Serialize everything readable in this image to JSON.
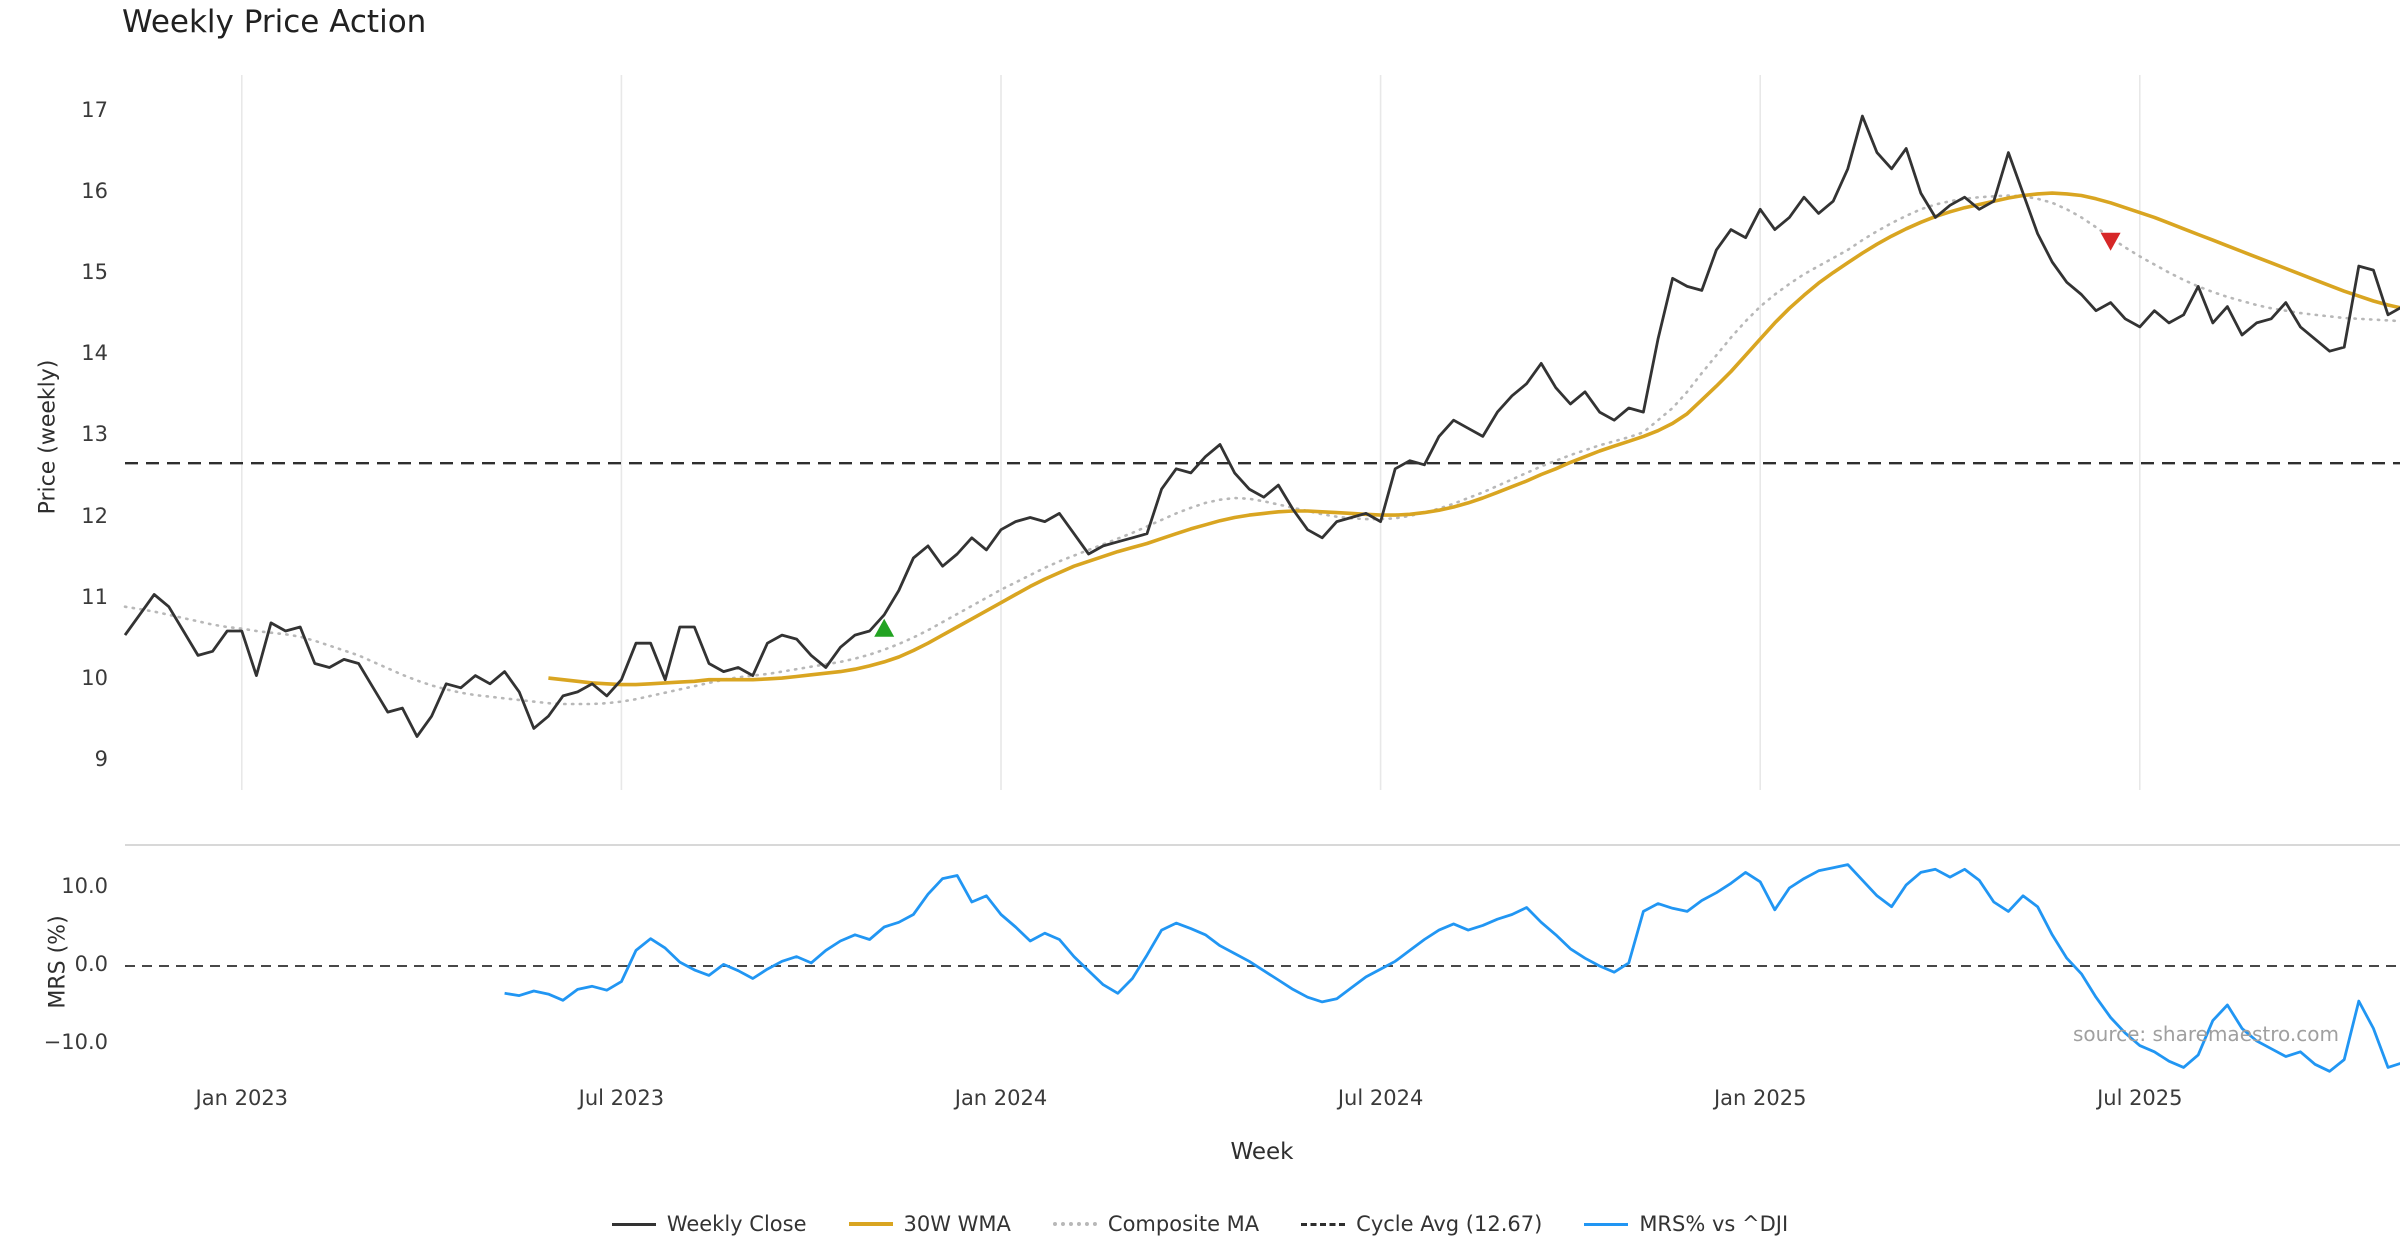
{
  "annotations": {
    "source_text": "source: sharemaestro.com"
  },
  "legend": {
    "items": [
      {
        "label": "Weekly Close",
        "key": "weekly_close",
        "line_style": "solid"
      },
      {
        "label": "30W WMA",
        "key": "wma",
        "line_style": "solid"
      },
      {
        "label": "Composite MA",
        "key": "composite",
        "line_style": "dotted"
      },
      {
        "label": "Cycle Avg (12.67)",
        "key": "cycle_avg",
        "line_style": "dashed"
      },
      {
        "label": "MRS% vs ^DJI",
        "key": "mrs",
        "line_style": "solid"
      }
    ]
  },
  "chart_data": {
    "type": "line",
    "title": "Weekly Price Action",
    "xlabel": "Week",
    "grid": "vertical-light",
    "legend_position": "bottom-center",
    "colors": {
      "weekly_close": "#333333",
      "wma": "#d9a521",
      "composite": "#b8b8b8",
      "cycle_avg": "#2e2e2e",
      "mrs": "#2196f3",
      "buy": "#22a322",
      "sell": "#d62728",
      "grid": "#e8e8e8",
      "spine": "#cccccc"
    },
    "x_axis": {
      "unit": "weeks",
      "xlim_weeks": [
        0,
        156
      ],
      "ticks": [
        {
          "week": 8,
          "label": "Jan 2023"
        },
        {
          "week": 34,
          "label": "Jul 2023"
        },
        {
          "week": 60,
          "label": "Jan 2024"
        },
        {
          "week": 86,
          "label": "Jul 2024"
        },
        {
          "week": 112,
          "label": "Jan 2025"
        },
        {
          "week": 138,
          "label": "Jul 2025"
        }
      ]
    },
    "panels": [
      {
        "name": "price",
        "ylabel": "Price (weekly)",
        "ylim": [
          8.7,
          17.35
        ],
        "yticks": [
          9,
          10,
          11,
          12,
          13,
          14,
          15,
          16,
          17
        ],
        "reference_line": {
          "label": "Cycle Avg",
          "value": 12.67,
          "style": "dashed"
        },
        "series": [
          {
            "key": "weekly_close",
            "name": "Weekly Close",
            "start_week": 0,
            "values": [
              10.55,
              10.8,
              11.05,
              10.9,
              10.6,
              10.3,
              10.35,
              10.6,
              10.6,
              10.05,
              10.7,
              10.6,
              10.65,
              10.2,
              10.15,
              10.25,
              10.2,
              9.9,
              9.6,
              9.65,
              9.3,
              9.55,
              9.95,
              9.9,
              10.05,
              9.95,
              10.1,
              9.85,
              9.4,
              9.55,
              9.8,
              9.85,
              9.95,
              9.8,
              10.0,
              10.45,
              10.45,
              10.0,
              10.65,
              10.65,
              10.2,
              10.1,
              10.15,
              10.05,
              10.45,
              10.55,
              10.5,
              10.3,
              10.15,
              10.4,
              10.55,
              10.6,
              10.8,
              11.1,
              11.5,
              11.65,
              11.4,
              11.55,
              11.75,
              11.6,
              11.85,
              11.95,
              12.0,
              11.95,
              12.05,
              11.8,
              11.55,
              11.65,
              11.7,
              11.75,
              11.8,
              12.35,
              12.6,
              12.55,
              12.75,
              12.9,
              12.55,
              12.35,
              12.25,
              12.4,
              12.1,
              11.85,
              11.75,
              11.95,
              12.0,
              12.05,
              11.95,
              12.6,
              12.7,
              12.65,
              13.0,
              13.2,
              13.1,
              13.0,
              13.3,
              13.5,
              13.65,
              13.9,
              13.6,
              13.4,
              13.55,
              13.3,
              13.2,
              13.35,
              13.3,
              14.2,
              14.95,
              14.85,
              14.8,
              15.3,
              15.55,
              15.45,
              15.8,
              15.55,
              15.7,
              15.95,
              15.75,
              15.9,
              16.3,
              16.95,
              16.5,
              16.3,
              16.55,
              16.0,
              15.7,
              15.85,
              15.95,
              15.8,
              15.9,
              16.5,
              16.0,
              15.5,
              15.15,
              14.9,
              14.75,
              14.55,
              14.65,
              14.45,
              14.35,
              14.55,
              14.4,
              14.5,
              14.85,
              14.4,
              14.6,
              14.25,
              14.4,
              14.45,
              14.65,
              14.35,
              14.2,
              14.05,
              14.1,
              15.1,
              15.05,
              14.5,
              14.6
            ]
          },
          {
            "key": "wma",
            "name": "30W WMA",
            "start_week": 29,
            "values": [
              10.02,
              10.0,
              9.98,
              9.96,
              9.95,
              9.94,
              9.94,
              9.95,
              9.96,
              9.97,
              9.98,
              10.0,
              10.0,
              10.0,
              10.0,
              10.01,
              10.02,
              10.04,
              10.06,
              10.08,
              10.1,
              10.13,
              10.17,
              10.22,
              10.28,
              10.36,
              10.45,
              10.55,
              10.65,
              10.75,
              10.85,
              10.95,
              11.05,
              11.15,
              11.24,
              11.32,
              11.4,
              11.46,
              11.52,
              11.58,
              11.63,
              11.68,
              11.74,
              11.8,
              11.86,
              11.91,
              11.96,
              12.0,
              12.03,
              12.05,
              12.07,
              12.08,
              12.08,
              12.07,
              12.06,
              12.05,
              12.04,
              12.03,
              12.03,
              12.04,
              12.06,
              12.09,
              12.13,
              12.18,
              12.24,
              12.31,
              12.38,
              12.45,
              12.53,
              12.6,
              12.68,
              12.75,
              12.82,
              12.88,
              12.94,
              13.0,
              13.07,
              13.16,
              13.28,
              13.45,
              13.62,
              13.8,
              14.0,
              14.2,
              14.4,
              14.58,
              14.74,
              14.89,
              15.02,
              15.14,
              15.26,
              15.37,
              15.47,
              15.56,
              15.64,
              15.71,
              15.77,
              15.82,
              15.86,
              15.9,
              15.94,
              15.97,
              15.99,
              16.0,
              15.99,
              15.97,
              15.93,
              15.88,
              15.82,
              15.76,
              15.7,
              15.63,
              15.56,
              15.49,
              15.42,
              15.35,
              15.28,
              15.21,
              15.14,
              15.07,
              15.0,
              14.93,
              14.86,
              14.79,
              14.73,
              14.67,
              14.62,
              14.58
            ]
          },
          {
            "key": "composite",
            "name": "Composite MA",
            "start_week": 0,
            "values": [
              10.9,
              10.87,
              10.84,
              10.8,
              10.76,
              10.72,
              10.68,
              10.65,
              10.63,
              10.6,
              10.58,
              10.56,
              10.53,
              10.48,
              10.42,
              10.36,
              10.3,
              10.22,
              10.14,
              10.06,
              9.99,
              9.93,
              9.88,
              9.84,
              9.81,
              9.79,
              9.77,
              9.75,
              9.73,
              9.71,
              9.7,
              9.7,
              9.7,
              9.71,
              9.73,
              9.76,
              9.8,
              9.84,
              9.88,
              9.92,
              9.96,
              10.0,
              10.03,
              10.05,
              10.07,
              10.1,
              10.13,
              10.16,
              10.19,
              10.22,
              10.26,
              10.31,
              10.37,
              10.44,
              10.52,
              10.61,
              10.71,
              10.81,
              10.91,
              11.01,
              11.11,
              11.2,
              11.29,
              11.38,
              11.46,
              11.53,
              11.6,
              11.67,
              11.74,
              11.81,
              11.89,
              11.97,
              12.05,
              12.12,
              12.18,
              12.22,
              12.24,
              12.23,
              12.2,
              12.16,
              12.12,
              12.08,
              12.04,
              12.01,
              11.99,
              11.98,
              11.98,
              11.99,
              12.02,
              12.06,
              12.11,
              12.17,
              12.24,
              12.31,
              12.39,
              12.47,
              12.55,
              12.63,
              12.7,
              12.77,
              12.83,
              12.89,
              12.94,
              12.99,
              13.05,
              13.2,
              13.35,
              13.55,
              13.78,
              14.0,
              14.22,
              14.42,
              14.6,
              14.75,
              14.88,
              15.0,
              15.1,
              15.2,
              15.3,
              15.42,
              15.53,
              15.63,
              15.72,
              15.8,
              15.86,
              15.9,
              15.93,
              15.95,
              15.96,
              15.97,
              15.96,
              15.93,
              15.88,
              15.8,
              15.7,
              15.58,
              15.45,
              15.33,
              15.22,
              15.12,
              15.02,
              14.93,
              14.85,
              14.78,
              14.72,
              14.67,
              14.62,
              14.58,
              14.55,
              14.52,
              14.5,
              14.48,
              14.46,
              14.45,
              14.44,
              14.43,
              14.42
            ]
          }
        ],
        "markers": [
          {
            "key": "buy",
            "shape": "triangle-up",
            "week": 52,
            "value": 10.64
          },
          {
            "key": "sell",
            "shape": "triangle-down",
            "week": 136,
            "value": 15.4
          }
        ]
      },
      {
        "name": "mrs",
        "ylabel": "MRS (%)",
        "ylim": [
          -14.5,
          15.5
        ],
        "yticks": [
          {
            "value": 10,
            "label": "10.0"
          },
          {
            "value": 0,
            "label": "0.0"
          },
          {
            "value": -10,
            "label": "−10.0"
          }
        ],
        "reference_line": {
          "label": "zero",
          "value": 0,
          "style": "dashed"
        },
        "series": [
          {
            "key": "mrs",
            "name": "MRS% vs ^DJI",
            "start_week": 26,
            "values": [
              -3.5,
              -3.8,
              -3.2,
              -3.6,
              -4.4,
              -3.0,
              -2.6,
              -3.1,
              -2.0,
              2.0,
              3.5,
              2.3,
              0.5,
              -0.5,
              -1.2,
              0.2,
              -0.6,
              -1.6,
              -0.4,
              0.6,
              1.2,
              0.4,
              2.0,
              3.2,
              4.0,
              3.4,
              5.0,
              5.6,
              6.6,
              9.2,
              11.2,
              11.6,
              8.2,
              9.0,
              6.6,
              5.0,
              3.2,
              4.2,
              3.4,
              1.2,
              -0.6,
              -2.4,
              -3.5,
              -1.6,
              1.4,
              4.6,
              5.5,
              4.8,
              4.0,
              2.6,
              1.6,
              0.6,
              -0.6,
              -1.8,
              -3.0,
              -4.0,
              -4.6,
              -4.2,
              -2.8,
              -1.4,
              -0.4,
              0.6,
              2.0,
              3.4,
              4.6,
              5.4,
              4.6,
              5.2,
              6.0,
              6.6,
              7.5,
              5.6,
              4.0,
              2.2,
              1.0,
              0.0,
              -0.8,
              0.4,
              7.0,
              8.0,
              7.4,
              7.0,
              8.4,
              9.4,
              10.6,
              12.0,
              10.8,
              7.2,
              10.0,
              11.2,
              12.2,
              12.6,
              13.0,
              11.0,
              9.0,
              7.6,
              10.4,
              12.0,
              12.4,
              11.4,
              12.4,
              11.0,
              8.2,
              7.0,
              9.0,
              7.6,
              4.0,
              1.0,
              -1.0,
              -4.0,
              -6.6,
              -8.6,
              -10.2,
              -11.0,
              -12.2,
              -13.0,
              -11.4,
              -7.0,
              -5.0,
              -8.0,
              -9.6,
              -10.6,
              -11.6,
              -11.0,
              -12.6,
              -13.5,
              -12.0,
              -4.5,
              -8.0,
              -13.0,
              -12.4
            ]
          }
        ]
      }
    ]
  }
}
